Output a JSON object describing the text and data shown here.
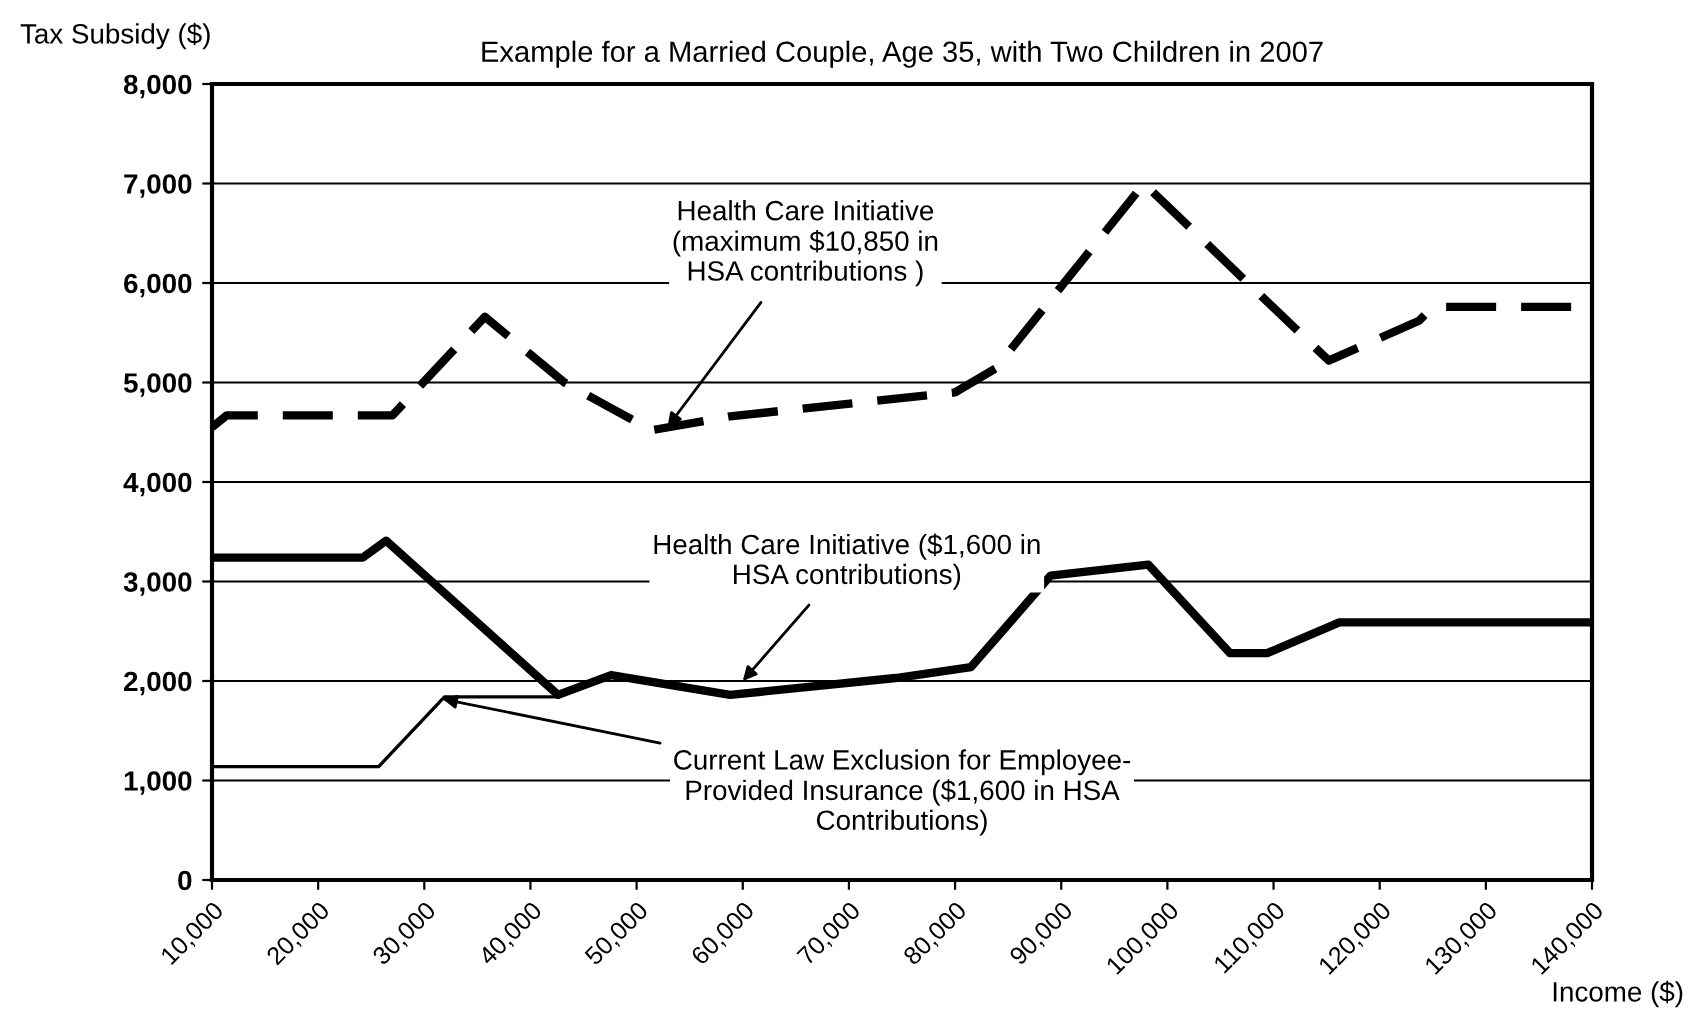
{
  "chart_data": {
    "type": "line",
    "title": "Example for a Married Couple, Age 35, with Two Children in 2007",
    "xlabel": "Income ($)",
    "ylabel": "Tax Subsidy ($)",
    "series": [
      {
        "color": "#000000",
        "line_style": "dashed",
        "x": [
          10000,
          11400,
          27000,
          35700,
          43200,
          51400,
          58800,
          80000,
          83800,
          97800,
          115200,
          123700,
          125000,
          140000
        ],
        "values": [
          4550,
          4670,
          4670,
          5660,
          5000,
          4520,
          4660,
          4900,
          5140,
          7000,
          5220,
          5620,
          5760,
          5760
        ]
      },
      {
        "color": "#000000",
        "line_style": "solid",
        "x": [
          10000,
          24200,
          26400,
          42600,
          47600,
          58800,
          74400,
          81500,
          89000,
          98200,
          105900,
          109400,
          116200,
          140000
        ],
        "values": [
          3240,
          3240,
          3410,
          1860,
          2060,
          1860,
          2030,
          2140,
          3060,
          3170,
          2280,
          2280,
          2590,
          2590
        ]
      },
      {
        "color": "#000000",
        "line_style": "solid",
        "x": [
          10000,
          25700,
          31900,
          42600
        ],
        "values": [
          1140,
          1140,
          1840,
          1840
        ]
      }
    ],
    "xlim": [
      10000,
      140000
    ],
    "xticks": [
      {
        "value": 10000,
        "label": "10,000"
      },
      {
        "value": 20000,
        "label": "20,000"
      },
      {
        "value": 30000,
        "label": "30,000"
      },
      {
        "value": 40000,
        "label": "40,000"
      },
      {
        "value": 50000,
        "label": "50,000"
      },
      {
        "value": 60000,
        "label": "60,000"
      },
      {
        "value": 70000,
        "label": "70,000"
      },
      {
        "value": 80000,
        "label": "80,000"
      },
      {
        "value": 90000,
        "label": "90,000"
      },
      {
        "value": 100000,
        "label": "100,000"
      },
      {
        "value": 110000,
        "label": "110,000"
      },
      {
        "value": 120000,
        "label": "120,000"
      },
      {
        "value": 130000,
        "label": "130,000"
      },
      {
        "value": 140000,
        "label": "140,000"
      }
    ],
    "ylim": [
      0,
      8000
    ],
    "yticks": [
      0,
      {
        "value": 1000,
        "label": "1,000"
      },
      {
        "value": 2000,
        "label": "2,000"
      },
      {
        "value": 3000,
        "label": "3,000"
      },
      {
        "value": 4000,
        "label": "4,000"
      },
      {
        "value": 5000,
        "label": "5,000"
      },
      {
        "value": 6000,
        "label": "6,000"
      },
      {
        "value": 7000,
        "label": "7,000"
      },
      {
        "value": 8000,
        "label": "8,000"
      }
    ],
    "grid": "y",
    "legend": false,
    "marker": "none",
    "annotations": [
      {
        "text": "Health Care Initiative\n(maximum $10,850 in\nHSA contributions )",
        "x": 52900,
        "y": 4550
      },
      {
        "text": "Health Care Initiative ($1,600 in\nHSA contributions)",
        "x": 60000,
        "y": 2000
      },
      {
        "text": "Current Law Exclusion for Employee-\nProvided Insurance ($1,600 in HSA\nContributions)",
        "x": 31700,
        "y": 1820
      }
    ]
  }
}
